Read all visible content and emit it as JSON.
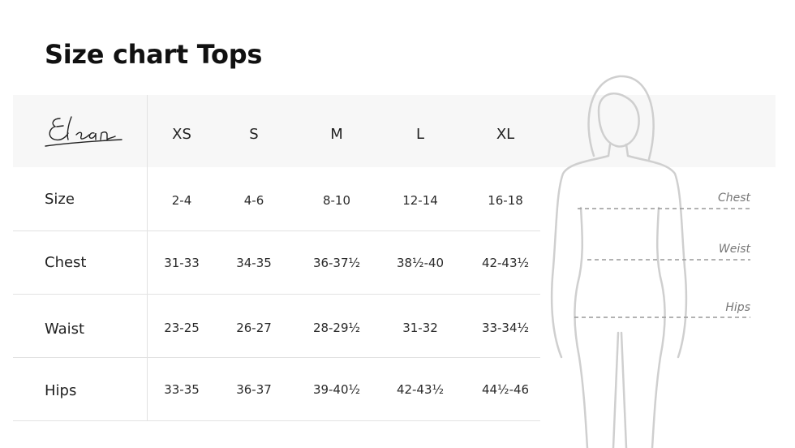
{
  "title": "Size chart Tops",
  "brand": "Elan",
  "columns": [
    "XS",
    "S",
    "M",
    "L",
    "XL"
  ],
  "rows": [
    {
      "label": "Size",
      "values": [
        "2-4",
        "4-6",
        "8-10",
        "12-14",
        "16-18"
      ]
    },
    {
      "label": "Chest",
      "values": [
        "31-33",
        "34-35",
        "36-37½",
        "38½-40",
        "42-43½"
      ]
    },
    {
      "label": "Waist",
      "values": [
        "23-25",
        "26-27",
        "28-29½",
        "31-32",
        "33-34½"
      ]
    },
    {
      "label": "Hips",
      "values": [
        "33-35",
        "36-37",
        "39-40½",
        "42-43½",
        "44½-46"
      ]
    }
  ],
  "figure": {
    "chest_label": "Chest",
    "waist_label": "Weist",
    "hips_label": "Hips"
  }
}
